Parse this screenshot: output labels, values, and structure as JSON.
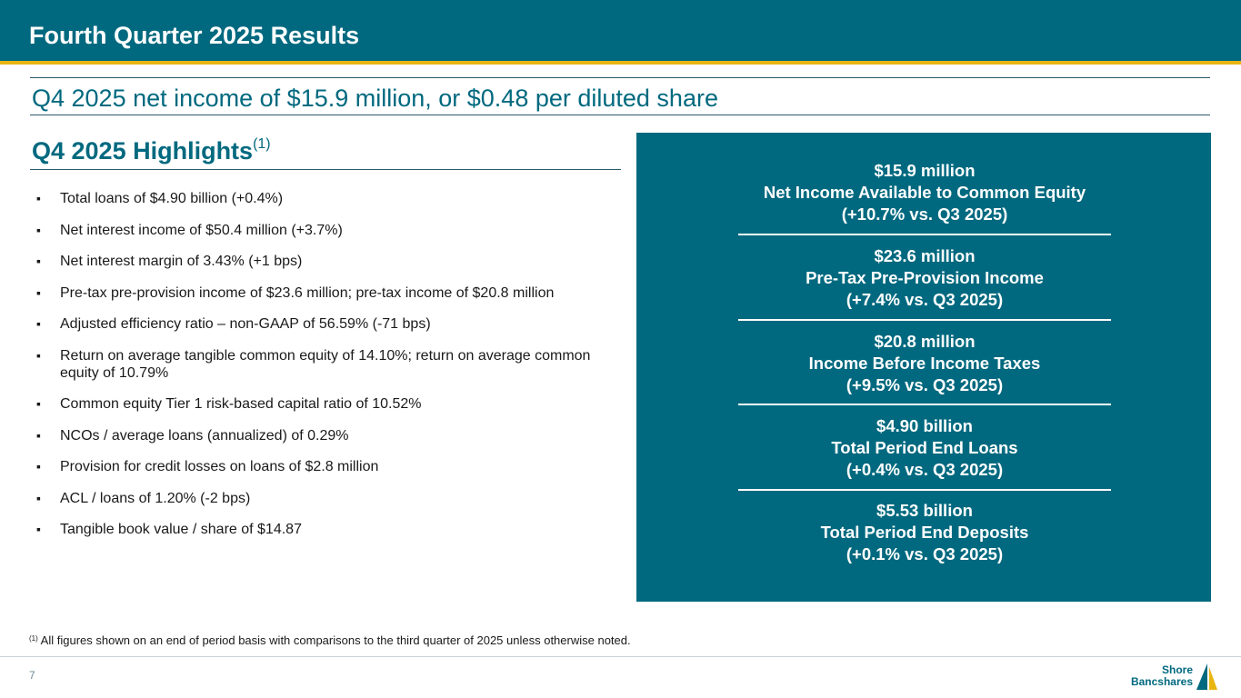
{
  "header": {
    "title": "Fourth Quarter 2025 Results"
  },
  "headline": "Q4 2025 net income of $15.9 million, or $0.48 per diluted share",
  "highlights": {
    "title": "Q4 2025 Highlights",
    "title_footnote_ref": "(1)",
    "bullet_marker": "▪",
    "items": [
      "Total loans of $4.90 billion (+0.4%)",
      "Net interest income of $50.4 million (+3.7%)",
      "Net interest margin of 3.43% (+1 bps)",
      "Pre-tax pre-provision income of $23.6 million; pre-tax income of $20.8 million",
      "Adjusted efficiency ratio – non-GAAP of 56.59% (-71 bps)",
      "Return on average tangible common equity of 14.10%; return on average common equity of 10.79%",
      "Common equity Tier 1 risk-based capital ratio of 10.52%",
      "NCOs / average loans (annualized) of 0.29%",
      "Provision for credit losses on loans of $2.8 million",
      "ACL / loans of 1.20% (-2 bps)",
      "Tangible book value / share of $14.87"
    ]
  },
  "metrics": [
    {
      "value": "$15.9 million",
      "label": "Net Income Available to Common Equity",
      "change": "(+10.7% vs. Q3 2025)"
    },
    {
      "value": "$23.6 million",
      "label": "Pre-Tax Pre-Provision Income",
      "change": "(+7.4% vs. Q3 2025)"
    },
    {
      "value": "$20.8 million",
      "label": "Income Before Income Taxes",
      "change": "(+9.5% vs. Q3 2025)"
    },
    {
      "value": "$4.90 billion",
      "label": "Total Period End Loans",
      "change": "(+0.4% vs. Q3 2025)"
    },
    {
      "value": "$5.53 billion",
      "label": "Total Period End Deposits",
      "change": "(+0.1% vs. Q3 2025)"
    }
  ],
  "footnote": {
    "ref": "(1)",
    "text": " All figures shown on an end of period basis with comparisons to the third quarter of 2025 unless otherwise noted."
  },
  "page_number": "7",
  "logo": {
    "line1": "Shore",
    "line2": "Bancshares"
  },
  "colors": {
    "brand_teal": "#00697f",
    "accent_gold": "#e8b511"
  }
}
